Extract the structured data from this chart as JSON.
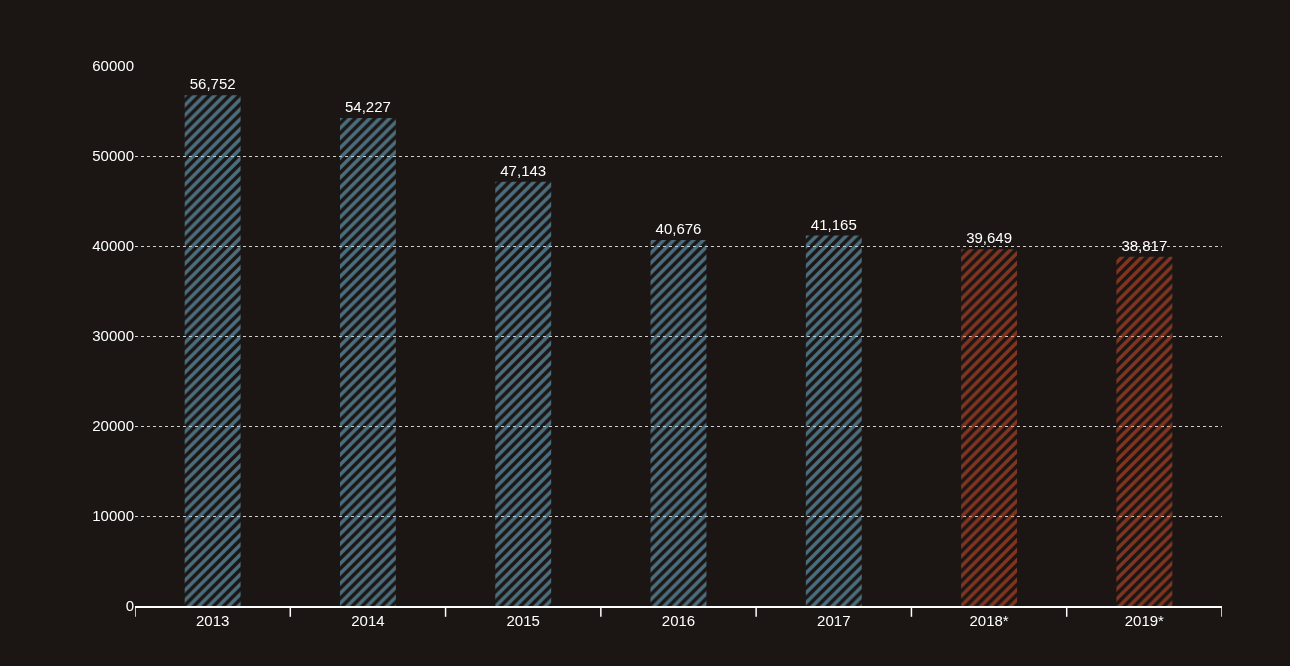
{
  "chart_data": {
    "type": "bar",
    "categories": [
      "2013",
      "2014",
      "2015",
      "2016",
      "2017",
      "2018*",
      "2019*"
    ],
    "values": [
      56752,
      54227,
      47143,
      40676,
      41165,
      39649,
      38817
    ],
    "value_labels": [
      "56,752",
      "54,227",
      "47,143",
      "40,676",
      "41,165",
      "39,649",
      "38,817"
    ],
    "colors": [
      "#7cc6e8",
      "#7cc6e8",
      "#7cc6e8",
      "#7cc6e8",
      "#7cc6e8",
      "#e8522b",
      "#e8522b"
    ],
    "ylim": [
      0,
      60000
    ],
    "yticks": [
      0,
      10000,
      20000,
      30000,
      40000,
      50000,
      60000
    ],
    "grid": "y",
    "legend": false
  }
}
